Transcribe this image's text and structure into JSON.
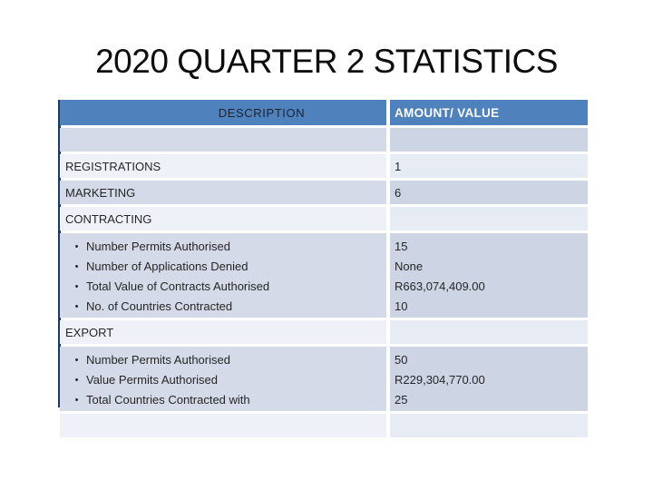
{
  "slide": {
    "title": "2020 QUARTER 2 STATISTICS"
  },
  "table": {
    "header": {
      "description": "DESCRIPTION",
      "amount": "AMOUNT/ VALUE"
    },
    "rows": [
      {
        "type": "empty",
        "band": "dark",
        "label": "",
        "value": ""
      },
      {
        "type": "simple",
        "band": "light",
        "label": "REGISTRATIONS",
        "value": "1"
      },
      {
        "type": "simple",
        "band": "dark",
        "label": "MARKETING",
        "value": "6"
      },
      {
        "type": "section",
        "band": "light",
        "label": "CONTRACTING",
        "value": ""
      },
      {
        "type": "bullets",
        "band": "dark",
        "items": [
          "Number Permits Authorised",
          "Number of Applications Denied",
          "Total Value of Contracts Authorised",
          "No. of Countries Contracted"
        ],
        "values": [
          "15",
          "None",
          "R663,074,409.00",
          "10"
        ]
      },
      {
        "type": "section",
        "band": "light",
        "label": "EXPORT",
        "value": ""
      },
      {
        "type": "bullets",
        "band": "dark",
        "items": [
          "Number Permits Authorised",
          "Value Permits Authorised",
          "Total Countries Contracted with"
        ],
        "values": [
          "50",
          "R229,304,770.00",
          "25"
        ]
      },
      {
        "type": "empty",
        "band": "light",
        "label": "",
        "value": ""
      }
    ],
    "bullet_glyph": "•"
  },
  "colors": {
    "title_text": "#0d0d0d",
    "header_bg": "#4f81bd",
    "header_text": "#ffffff",
    "header_description_text": "#1c2433",
    "band_dark_left": "#d4dae7",
    "band_dark_right": "#cdd4e3",
    "band_light_left": "#eef1f7",
    "band_light_right": "#e7ebf3",
    "left_border": "#1e3a60",
    "body_text": "#262626"
  }
}
